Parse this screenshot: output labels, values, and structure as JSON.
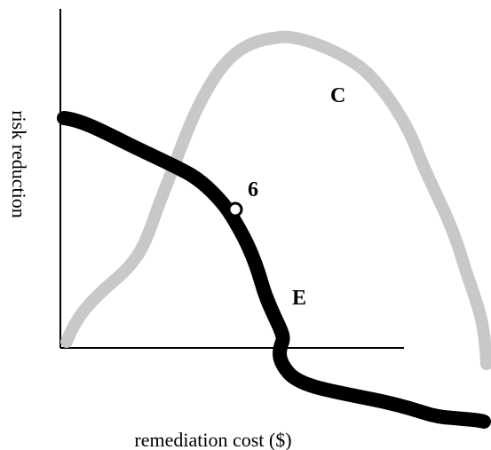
{
  "axes": {
    "y_label": "risk reduction",
    "x_label": "remediation cost ($)"
  },
  "curves": [
    {
      "label": "C"
    },
    {
      "label": "E"
    }
  ],
  "point": {
    "label": "6"
  }
}
